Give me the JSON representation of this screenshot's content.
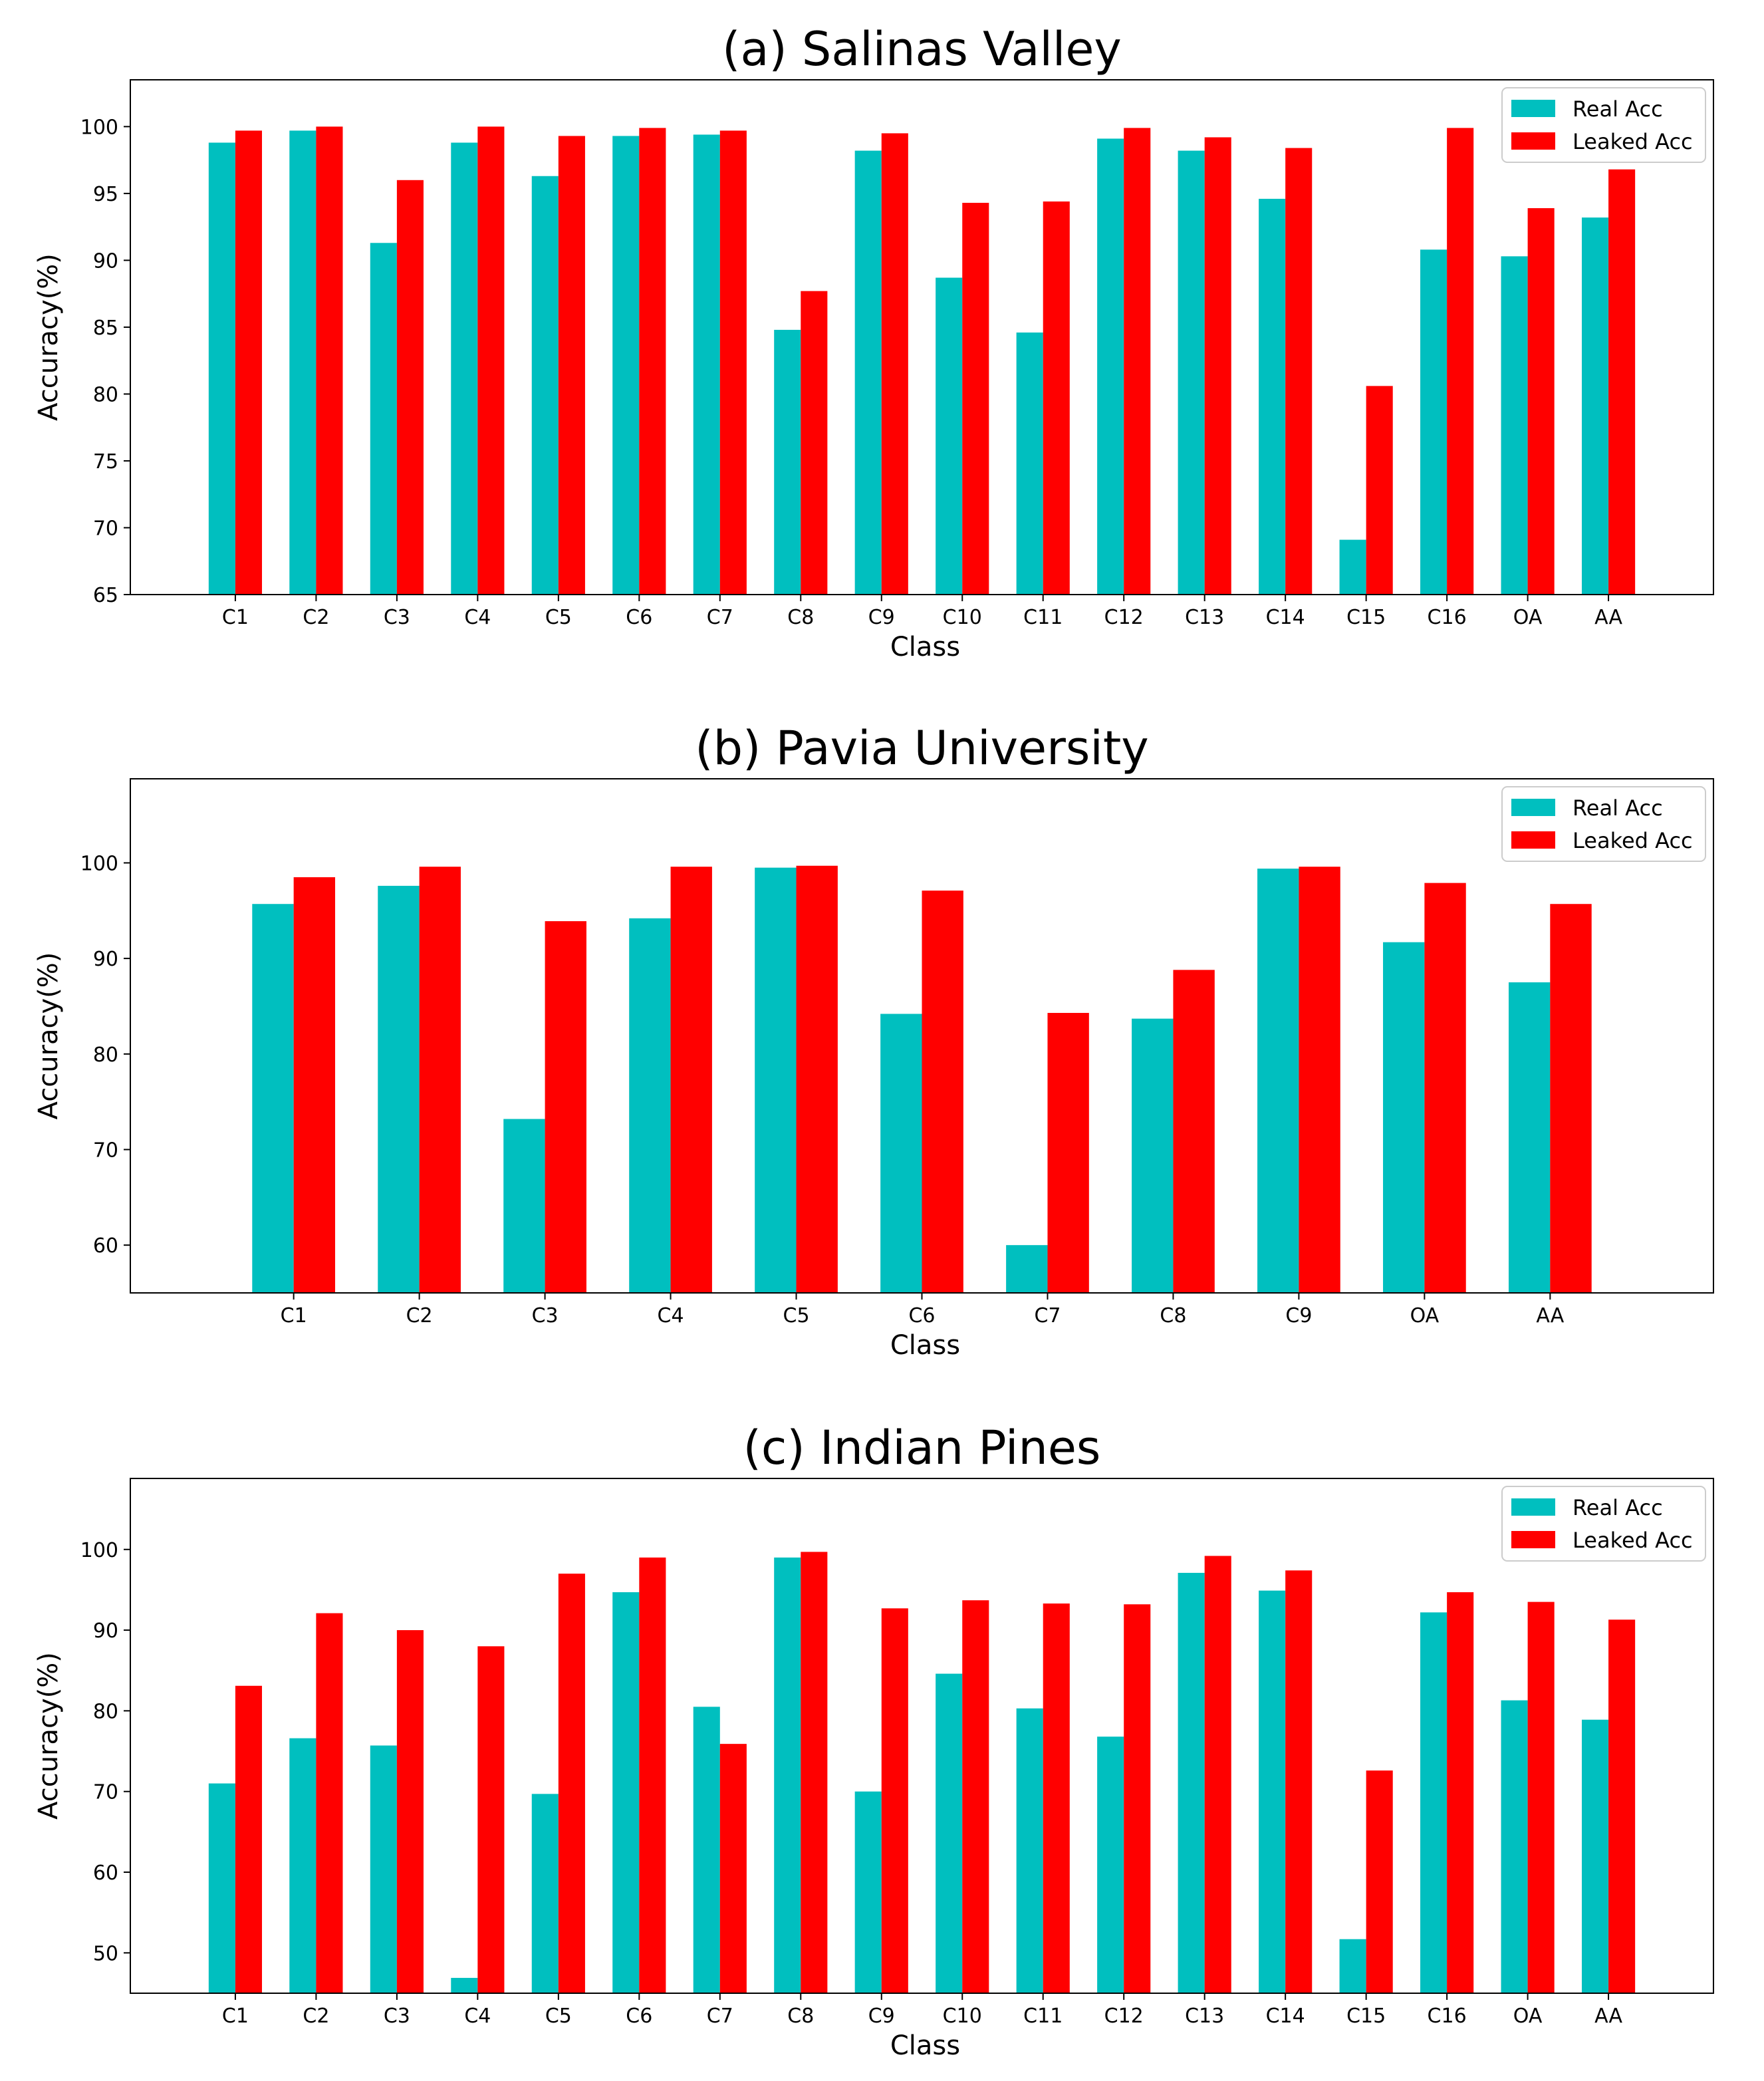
{
  "figure": {
    "series_names": [
      "Real Acc",
      "Leaked Acc"
    ],
    "colors": {
      "real": "#00bfbf",
      "leaked": "#ff0000"
    }
  },
  "chart_data": [
    {
      "type": "bar",
      "title": "(a) Salinas Valley",
      "xlabel": "Class",
      "ylabel": "Accuracy(%)",
      "ylim": [
        65,
        103.5
      ],
      "yticks": [
        65,
        70,
        75,
        80,
        85,
        90,
        95,
        100
      ],
      "legend": "top-right",
      "categories": [
        "C1",
        "C2",
        "C3",
        "C4",
        "C5",
        "C6",
        "C7",
        "C8",
        "C9",
        "C10",
        "C11",
        "C12",
        "C13",
        "C14",
        "C15",
        "C16",
        "OA",
        "AA"
      ],
      "series": [
        {
          "name": "Real Acc",
          "color": "#00bfbf",
          "values": [
            98.8,
            99.7,
            91.3,
            98.8,
            96.3,
            99.3,
            99.4,
            84.8,
            98.2,
            88.7,
            84.6,
            99.1,
            98.2,
            94.6,
            69.1,
            90.8,
            90.3,
            93.2
          ]
        },
        {
          "name": "Leaked Acc",
          "color": "#ff0000",
          "values": [
            99.7,
            100.0,
            96.0,
            100.0,
            99.3,
            99.9,
            99.7,
            87.7,
            99.5,
            94.3,
            94.4,
            99.9,
            99.2,
            98.4,
            80.6,
            99.9,
            93.9,
            96.8
          ]
        }
      ]
    },
    {
      "type": "bar",
      "title": "(b) Pavia University",
      "xlabel": "Class",
      "ylabel": "Accuracy(%)",
      "ylim": [
        55,
        108.8
      ],
      "yticks": [
        60,
        70,
        80,
        90,
        100
      ],
      "legend": "top-right",
      "categories": [
        "C1",
        "C2",
        "C3",
        "C4",
        "C5",
        "C6",
        "C7",
        "C8",
        "C9",
        "OA",
        "AA"
      ],
      "series": [
        {
          "name": "Real Acc",
          "color": "#00bfbf",
          "values": [
            95.7,
            97.6,
            73.2,
            94.2,
            99.5,
            84.2,
            60.0,
            83.7,
            99.4,
            91.7,
            87.5
          ]
        },
        {
          "name": "Leaked Acc",
          "color": "#ff0000",
          "values": [
            98.5,
            99.6,
            93.9,
            99.6,
            99.7,
            97.1,
            84.3,
            88.8,
            99.6,
            97.9,
            95.7
          ]
        }
      ]
    },
    {
      "type": "bar",
      "title": "(c) Indian Pines",
      "xlabel": "Class",
      "ylabel": "Accuracy(%)",
      "ylim": [
        45,
        108.8
      ],
      "yticks": [
        50,
        60,
        70,
        80,
        90,
        100
      ],
      "legend": "top-right",
      "categories": [
        "C1",
        "C2",
        "C3",
        "C4",
        "C5",
        "C6",
        "C7",
        "C8",
        "C9",
        "C10",
        "C11",
        "C12",
        "C13",
        "C14",
        "C15",
        "C16",
        "OA",
        "AA"
      ],
      "series": [
        {
          "name": "Real Acc",
          "color": "#00bfbf",
          "values": [
            71.0,
            76.6,
            75.7,
            46.9,
            69.7,
            94.7,
            80.5,
            99.0,
            70.0,
            84.6,
            80.3,
            76.8,
            97.1,
            94.9,
            51.7,
            92.2,
            81.3,
            78.9
          ]
        },
        {
          "name": "Leaked Acc",
          "color": "#ff0000",
          "values": [
            83.1,
            92.1,
            90.0,
            88.0,
            97.0,
            99.0,
            75.9,
            99.7,
            92.7,
            93.7,
            93.3,
            93.2,
            99.2,
            97.4,
            72.6,
            94.7,
            93.5,
            91.3
          ]
        }
      ]
    }
  ]
}
